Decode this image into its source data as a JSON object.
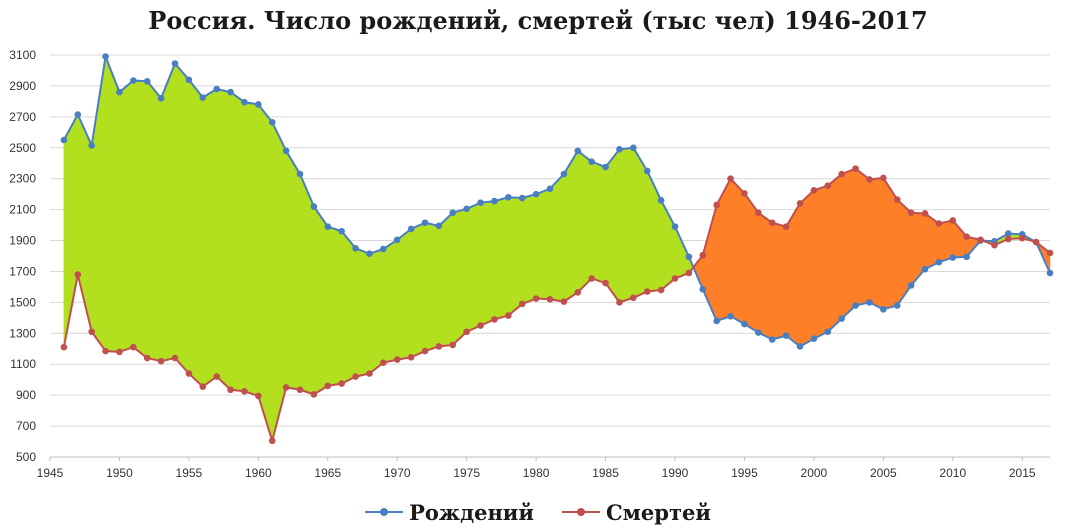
{
  "chart_data": {
    "type": "area",
    "title": "Россия. Число рождений, смертей (тыс чел) 1946-2017",
    "xlabel": "",
    "ylabel": "",
    "xlim": [
      1945,
      2017
    ],
    "ylim": [
      500,
      3100
    ],
    "x_ticks": [
      "1945",
      "1950",
      "1955",
      "1960",
      "1965",
      "1970",
      "1975",
      "1980",
      "1985",
      "1990",
      "1995",
      "2000",
      "2005",
      "2010",
      "2015"
    ],
    "y_ticks": [
      "500",
      "700",
      "900",
      "1100",
      "1300",
      "1500",
      "1700",
      "1900",
      "2100",
      "2300",
      "2500",
      "2700",
      "2900",
      "3100"
    ],
    "grid": "horizontal",
    "legend_position": "bottom",
    "fill_colors": {
      "births_above": "#b2e01e",
      "deaths_above": "#fd7f27"
    },
    "x": [
      1946,
      1947,
      1948,
      1949,
      1950,
      1951,
      1952,
      1953,
      1954,
      1955,
      1956,
      1957,
      1958,
      1959,
      1960,
      1961,
      1962,
      1963,
      1964,
      1965,
      1966,
      1967,
      1968,
      1969,
      1970,
      1971,
      1972,
      1973,
      1974,
      1975,
      1976,
      1977,
      1978,
      1979,
      1980,
      1981,
      1982,
      1983,
      1984,
      1985,
      1986,
      1987,
      1988,
      1989,
      1990,
      1991,
      1992,
      1993,
      1994,
      1995,
      1996,
      1997,
      1998,
      1999,
      2000,
      2001,
      2002,
      2003,
      2004,
      2005,
      2006,
      2007,
      2008,
      2009,
      2010,
      2011,
      2012,
      2013,
      2014,
      2015,
      2016,
      2017
    ],
    "series": [
      {
        "name": "Рождений",
        "color": "#4a7ec2",
        "values": [
          2550,
          2715,
          2515,
          3090,
          2860,
          2935,
          2930,
          2820,
          3045,
          2940,
          2825,
          2880,
          2860,
          2795,
          2780,
          2665,
          2480,
          2330,
          2120,
          1990,
          1960,
          1850,
          1815,
          1845,
          1905,
          1975,
          2015,
          1995,
          2080,
          2105,
          2145,
          2155,
          2180,
          2175,
          2200,
          2235,
          2330,
          2480,
          2410,
          2375,
          2490,
          2500,
          2350,
          2160,
          1990,
          1795,
          1585,
          1380,
          1410,
          1360,
          1305,
          1260,
          1285,
          1215,
          1265,
          1310,
          1395,
          1480,
          1500,
          1455,
          1480,
          1610,
          1715,
          1760,
          1790,
          1795,
          1900,
          1895,
          1945,
          1940,
          1890,
          1690
        ]
      },
      {
        "name": "Смертей",
        "color": "#c0504d",
        "values": [
          1210,
          1680,
          1310,
          1185,
          1180,
          1210,
          1140,
          1120,
          1140,
          1040,
          955,
          1020,
          935,
          925,
          895,
          605,
          950,
          935,
          905,
          960,
          975,
          1020,
          1040,
          1110,
          1130,
          1145,
          1185,
          1215,
          1225,
          1310,
          1350,
          1390,
          1415,
          1490,
          1525,
          1520,
          1505,
          1565,
          1655,
          1625,
          1500,
          1530,
          1570,
          1580,
          1655,
          1690,
          1805,
          2130,
          2300,
          2205,
          2080,
          2015,
          1990,
          2140,
          2225,
          2255,
          2330,
          2365,
          2295,
          2305,
          2165,
          2080,
          2075,
          2010,
          2030,
          1925,
          1905,
          1870,
          1910,
          1915,
          1890,
          1820
        ]
      }
    ]
  }
}
